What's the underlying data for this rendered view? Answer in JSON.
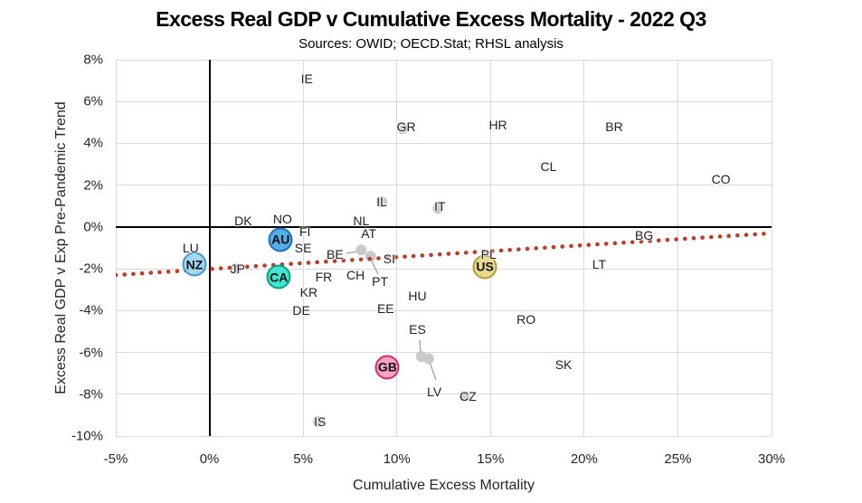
{
  "chart_data": {
    "type": "scatter",
    "title": "Excess Real GDP v Cumulative Excess Mortality - 2022 Q3",
    "subtitle": "Sources: OWID; OECD.Stat; RHSL analysis",
    "xlabel": "Cumulative Excess Mortality",
    "ylabel": "Excess Real GDP v Exp Pre-Pandemic Trend",
    "xlim": [
      -5,
      30
    ],
    "ylim": [
      -10,
      8
    ],
    "x_ticks": [
      {
        "value": -5,
        "label": "-5%"
      },
      {
        "value": 0,
        "label": "0%"
      },
      {
        "value": 5,
        "label": "5%"
      },
      {
        "value": 10,
        "label": "10%"
      },
      {
        "value": 15,
        "label": "15%"
      },
      {
        "value": 20,
        "label": "20%"
      },
      {
        "value": 25,
        "label": "25%"
      },
      {
        "value": 30,
        "label": "30%"
      }
    ],
    "y_ticks": [
      {
        "value": 8,
        "label": "8%"
      },
      {
        "value": 6,
        "label": "6%"
      },
      {
        "value": 4,
        "label": "4%"
      },
      {
        "value": 2,
        "label": "2%"
      },
      {
        "value": 0,
        "label": "0%"
      },
      {
        "value": -2,
        "label": "-2%"
      },
      {
        "value": -4,
        "label": "-4%"
      },
      {
        "value": -6,
        "label": "-6%"
      },
      {
        "value": -8,
        "label": "-8%"
      },
      {
        "value": -10,
        "label": "-10%"
      }
    ],
    "grid_color": "#d9d9d9",
    "zero_axis_color": "#000000",
    "label_points": [
      {
        "label": "IE",
        "x": 5.2,
        "y": 7.1
      },
      {
        "label": "GR",
        "x": 10.5,
        "y": 4.8
      },
      {
        "label": "HR",
        "x": 15.4,
        "y": 4.9
      },
      {
        "label": "BR",
        "x": 21.6,
        "y": 4.8
      },
      {
        "label": "CL",
        "x": 18.1,
        "y": 2.9
      },
      {
        "label": "CO",
        "x": 27.3,
        "y": 2.3
      },
      {
        "label": "IL",
        "x": 9.2,
        "y": 1.2
      },
      {
        "label": "IT",
        "x": 12.3,
        "y": 1.0
      },
      {
        "label": "NL",
        "x": 8.1,
        "y": 0.3
      },
      {
        "label": "DK",
        "x": 1.8,
        "y": 0.3
      },
      {
        "label": "NO",
        "x": 3.9,
        "y": 0.4
      },
      {
        "label": "FI",
        "x": 5.1,
        "y": -0.2
      },
      {
        "label": "AT",
        "x": 8.5,
        "y": -0.3
      },
      {
        "label": "SE",
        "x": 5.0,
        "y": -1.0
      },
      {
        "label": "BE",
        "x": 6.7,
        "y": -1.3
      },
      {
        "label": "SI",
        "x": 9.6,
        "y": -1.5
      },
      {
        "label": "LU",
        "x": -1.0,
        "y": -1.0
      },
      {
        "label": "JP",
        "x": 1.5,
        "y": -2.0
      },
      {
        "label": "CH",
        "x": 7.8,
        "y": -2.3
      },
      {
        "label": "PT",
        "x": 9.1,
        "y": -2.6
      },
      {
        "label": "FR",
        "x": 6.1,
        "y": -2.4
      },
      {
        "label": "KR",
        "x": 5.3,
        "y": -3.1
      },
      {
        "label": "DE",
        "x": 4.9,
        "y": -4.0
      },
      {
        "label": "EE",
        "x": 9.4,
        "y": -3.9
      },
      {
        "label": "HU",
        "x": 11.1,
        "y": -3.3
      },
      {
        "label": "PL",
        "x": 14.9,
        "y": -1.3
      },
      {
        "label": "LT",
        "x": 20.8,
        "y": -1.8
      },
      {
        "label": "BG",
        "x": 23.2,
        "y": -0.4
      },
      {
        "label": "RO",
        "x": 16.9,
        "y": -4.4
      },
      {
        "label": "ES",
        "x": 11.1,
        "y": -4.9
      },
      {
        "label": "SK",
        "x": 18.9,
        "y": -6.6
      },
      {
        "label": "LV",
        "x": 12.0,
        "y": -7.9
      },
      {
        "label": "CZ",
        "x": 13.8,
        "y": -8.1
      },
      {
        "label": "IS",
        "x": 5.9,
        "y": -9.3
      }
    ],
    "markers": [
      {
        "label": "NZ",
        "x": -0.8,
        "y": -1.8,
        "fill": "#a3d6f0",
        "border": "#3d9bd1"
      },
      {
        "label": "AU",
        "x": 3.8,
        "y": -0.6,
        "fill": "#54afe4",
        "border": "#1d6fb8"
      },
      {
        "label": "CA",
        "x": 3.7,
        "y": -2.4,
        "fill": "#41e4d0",
        "border": "#0aa17e"
      },
      {
        "label": "US",
        "x": 14.7,
        "y": -1.9,
        "fill": "#e8db8e",
        "border": "#ae9e3e"
      },
      {
        "label": "GB",
        "x": 9.5,
        "y": -6.7,
        "fill": "#f6a3c5",
        "border": "#d42f6f"
      }
    ],
    "gray_dots": [
      {
        "x": 8.1,
        "y": -1.1
      },
      {
        "x": 8.6,
        "y": -1.4
      },
      {
        "x": 11.3,
        "y": -6.2
      },
      {
        "x": 11.7,
        "y": -6.3
      },
      {
        "x": 10.3,
        "y": 4.7
      },
      {
        "x": 9.2,
        "y": 1.2
      },
      {
        "x": 12.2,
        "y": 0.9
      },
      {
        "x": 1.4,
        "y": -2.0
      },
      {
        "x": 5.8,
        "y": -9.3
      },
      {
        "x": 13.6,
        "y": -8.1
      }
    ],
    "leader_lines": [
      {
        "x1": 7.3,
        "y1": -1.26,
        "x2": 7.94,
        "y2": -1.17
      },
      {
        "x1": 8.61,
        "y1": -1.56,
        "x2": 9.0,
        "y2": -2.26
      },
      {
        "x1": 11.22,
        "y1": -5.41,
        "x2": 11.27,
        "y2": -6.06
      },
      {
        "x1": 11.75,
        "y1": -6.45,
        "x2": 12.09,
        "y2": -7.32
      }
    ],
    "trend": {
      "x1": -5,
      "y1": -2.3,
      "x2": 30,
      "y2": -0.3,
      "color": "#bc3e28",
      "style": "dotted"
    },
    "dot_color": "#c9c9c9",
    "leader_color": "#a6a6a6"
  }
}
